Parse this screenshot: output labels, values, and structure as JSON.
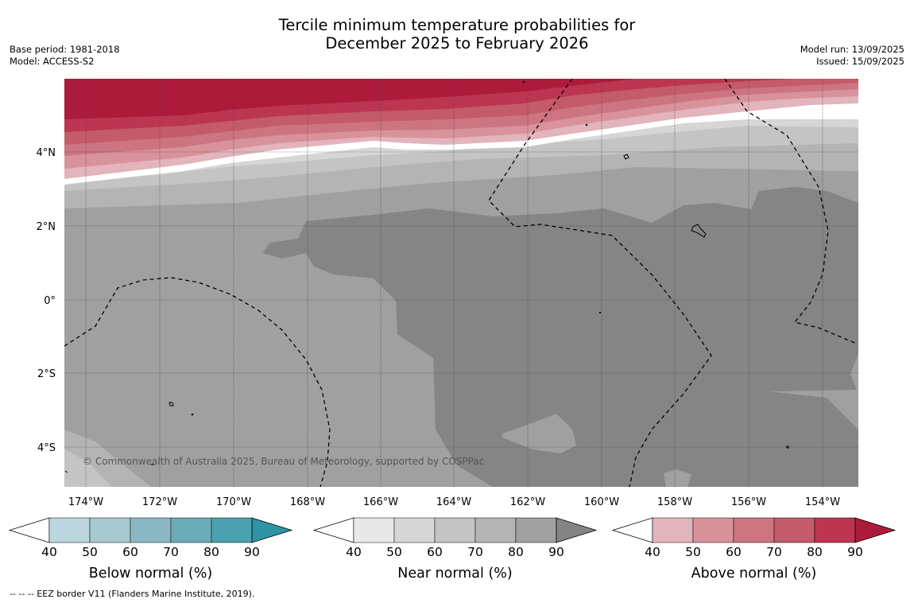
{
  "title": {
    "line1": "Tercile minimum temperature probabilities for",
    "line2": "December 2025 to February 2026"
  },
  "meta_left": {
    "base_period": "Base period: 1981-2018",
    "model": "Model: ACCESS-S2"
  },
  "meta_right": {
    "model_run": "Model run: 13/09/2025",
    "issued": "Issued: 15/09/2025"
  },
  "map": {
    "lat_labels": [
      "4°N",
      "2°N",
      "0°",
      "2°S",
      "4°S"
    ],
    "lon_labels": [
      "174°W",
      "172°W",
      "170°W",
      "168°W",
      "166°W",
      "164°W",
      "162°W",
      "160°W",
      "158°W",
      "156°W",
      "154°W"
    ],
    "copyright": "© Commonwealth of Australia 2025, Bureau of Meteorology, supported by COSPPac"
  },
  "colorbars": [
    {
      "name": "below",
      "title": "Below normal (%)",
      "ticks": [
        "40",
        "50",
        "60",
        "70",
        "80",
        "90"
      ],
      "colors": [
        "#ffffff",
        "#bcd6dd",
        "#a7c9cf",
        "#8cb8c4",
        "#6cacb9",
        "#4da2b0",
        "#2e93a3"
      ]
    },
    {
      "name": "near",
      "title": "Near normal (%)",
      "ticks": [
        "40",
        "50",
        "60",
        "70",
        "80",
        "90"
      ],
      "colors": [
        "#ffffff",
        "#e8e8e8",
        "#d6d6d6",
        "#c4c4c4",
        "#b4b4b4",
        "#a0a0a0",
        "#848484"
      ]
    },
    {
      "name": "above",
      "title": "Above normal (%)",
      "ticks": [
        "40",
        "50",
        "60",
        "70",
        "80",
        "90"
      ],
      "colors": [
        "#ffffff",
        "#e2b4bb",
        "#d8929b",
        "#cc7581",
        "#c45b6a",
        "#bc3551",
        "#ac1c3a"
      ]
    }
  ],
  "footnote": "--  --  -- EEZ border V11 (Flanders Marine Institute, 2019)."
}
